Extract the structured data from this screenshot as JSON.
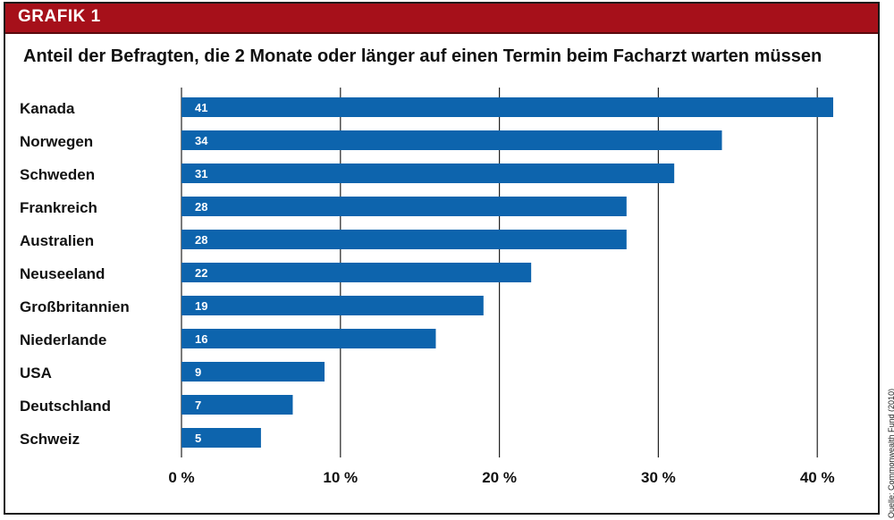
{
  "header": {
    "label": "GRAFIK 1"
  },
  "source": "Quelle: Commonwealth Fund (2010)",
  "colors": {
    "bar": "#0d64ad",
    "header": "#a6101a",
    "grid": "#222222"
  },
  "chart_data": {
    "type": "bar",
    "orientation": "horizontal",
    "title": "Anteil der Befragten, die 2 Monate oder länger auf einen Termin beim Facharzt warten müssen",
    "categories": [
      "Kanada",
      "Norwegen",
      "Schweden",
      "Frankreich",
      "Australien",
      "Neuseeland",
      "Großbritannien",
      "Niederlande",
      "USA",
      "Deutschland",
      "Schweiz"
    ],
    "values": [
      41,
      34,
      31,
      28,
      28,
      22,
      19,
      16,
      9,
      7,
      5
    ],
    "value_labels": [
      "41",
      "34",
      "31",
      "28",
      "28",
      "22",
      "19",
      "16",
      "9",
      "7",
      "5"
    ],
    "xlim": [
      0,
      41
    ],
    "xticks": [
      0,
      10,
      20,
      30,
      40
    ],
    "xtick_labels": [
      "0 %",
      "10 %",
      "20 %",
      "30 %",
      "40 %"
    ],
    "grid": "vertical",
    "xlabel": "",
    "ylabel": ""
  }
}
